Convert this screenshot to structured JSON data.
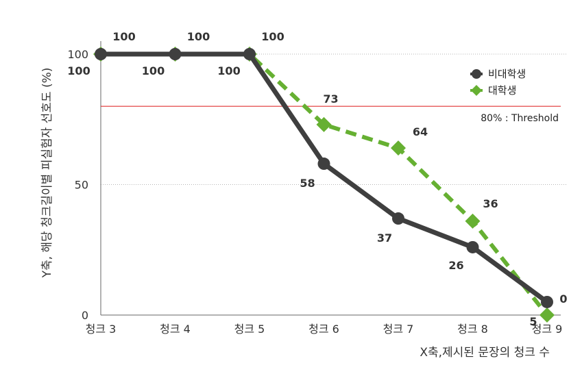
{
  "chart_data": {
    "type": "line",
    "categories": [
      "청크 3",
      "청크 4",
      "청크 5",
      "청크 6",
      "청크 7",
      "청크 8",
      "청크 9"
    ],
    "xlabel": "X축,제시된 문장의 청크 수",
    "ylabel": "Y축, 해당 청크길이별 피실험자 선호도 (%)",
    "ylim": [
      0,
      100
    ],
    "yticks": [
      "0",
      "50",
      "100"
    ],
    "grid": true,
    "legend": "top-right",
    "series": [
      {
        "name": "비대학생",
        "values": [
          100,
          100,
          100,
          58,
          37,
          26,
          5
        ],
        "labels": [
          "100",
          "100",
          "100",
          "58",
          "37",
          "26",
          "5"
        ],
        "color": "#3f3f3f",
        "style": "solid",
        "marker": "circle"
      },
      {
        "name": "대학생",
        "values": [
          100,
          100,
          100,
          73,
          64,
          36,
          0
        ],
        "labels": [
          "100",
          "100",
          "100",
          "73",
          "64",
          "36",
          "0"
        ],
        "color": "#66b032",
        "style": "dashed",
        "marker": "diamond"
      }
    ],
    "threshold": {
      "value": 80,
      "label": "80% : Threshold",
      "color": "#e03030"
    }
  }
}
